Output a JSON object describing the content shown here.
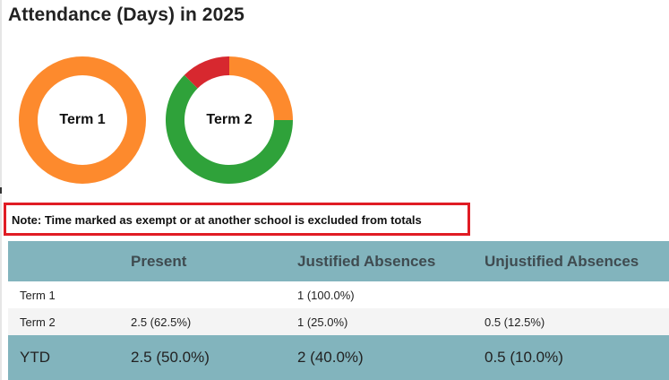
{
  "page_title": "Attendance (Days) in 2025",
  "colors": {
    "present": "#2fa23a",
    "justified": "#fd8a2d",
    "unjustified": "#d7282f",
    "table_header": "#82b4bd",
    "note_border": "#e01c24"
  },
  "chart_data": [
    {
      "type": "pie",
      "style": "donut",
      "label": "Term 1",
      "categories": [
        "Present",
        "Justified Absences",
        "Unjustified Absences"
      ],
      "values": [
        0,
        1,
        0
      ],
      "colors": [
        "#2fa23a",
        "#fd8a2d",
        "#d7282f"
      ]
    },
    {
      "type": "pie",
      "style": "donut",
      "label": "Term 2",
      "categories": [
        "Justified Absences",
        "Present",
        "Unjustified Absences"
      ],
      "values": [
        1,
        2.5,
        0.5
      ],
      "colors": [
        "#fd8a2d",
        "#2fa23a",
        "#d7282f"
      ]
    }
  ],
  "note": "Note: Time marked as exempt or at another school is excluded from totals",
  "table": {
    "headers": [
      "",
      "Present",
      "Justified Absences",
      "Unjustified Absences"
    ],
    "rows": [
      [
        "Term 1",
        "",
        "1 (100.0%)",
        ""
      ],
      [
        "Term 2",
        "2.5 (62.5%)",
        "1 (25.0%)",
        "0.5 (12.5%)"
      ]
    ],
    "ytd": [
      "YTD",
      "2.5 (50.0%)",
      "2 (40.0%)",
      "0.5 (10.0%)"
    ]
  }
}
